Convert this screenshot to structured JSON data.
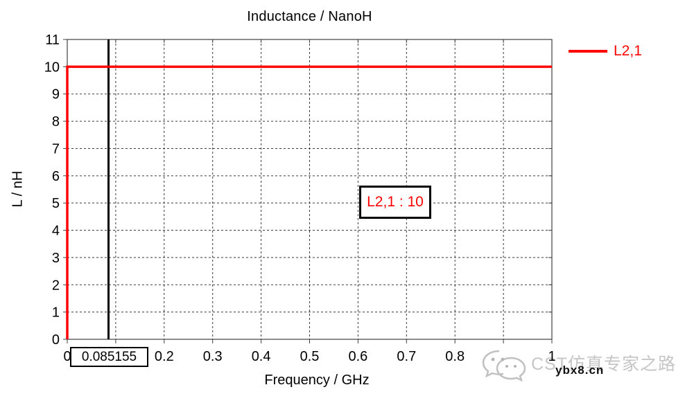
{
  "chart_data": {
    "type": "line",
    "title": "Inductance / NanoH",
    "xlabel": "Frequency / GHz",
    "ylabel": "L / nH",
    "xlim": [
      0,
      1
    ],
    "ylim": [
      0,
      11
    ],
    "x_grid_step": 0.1,
    "y_grid_step": 1,
    "grid": "dashed",
    "x_tick_labels": [
      {
        "value": 0,
        "label": "0"
      },
      {
        "value": 0.2,
        "label": "0.2"
      },
      {
        "value": 0.3,
        "label": "0.3"
      },
      {
        "value": 0.4,
        "label": "0.4"
      },
      {
        "value": 0.5,
        "label": "0.5"
      },
      {
        "value": 0.6,
        "label": "0.6"
      },
      {
        "value": 0.7,
        "label": "0.7"
      },
      {
        "value": 0.8,
        "label": "0.8"
      },
      {
        "value": 1,
        "label": "1"
      }
    ],
    "y_tick_labels": [
      {
        "value": 0,
        "label": "0"
      },
      {
        "value": 1,
        "label": "1"
      },
      {
        "value": 2,
        "label": "2"
      },
      {
        "value": 3,
        "label": "3"
      },
      {
        "value": 4,
        "label": "4"
      },
      {
        "value": 5,
        "label": "5"
      },
      {
        "value": 6,
        "label": "6"
      },
      {
        "value": 7,
        "label": "7"
      },
      {
        "value": 8,
        "label": "8"
      },
      {
        "value": 9,
        "label": "9"
      },
      {
        "value": 10,
        "label": "10"
      },
      {
        "value": 11,
        "label": "11"
      }
    ],
    "series": [
      {
        "name": "L2,1",
        "color": "#ff0000",
        "points": [
          [
            0,
            0
          ],
          [
            0,
            10
          ],
          [
            1,
            10
          ]
        ]
      }
    ],
    "marker": {
      "x": 0.085155,
      "label": "0.085155",
      "color": "#000000"
    },
    "annotation": {
      "label": "L2,1 : 10",
      "color": "#ff0000"
    },
    "legend": {
      "position": "right-top",
      "entries": [
        {
          "label": "L2,1",
          "color": "#ff0000"
        }
      ]
    }
  },
  "watermark": {
    "icon": "wechat-icon",
    "brand": "CST仿真专家之路",
    "site": "ybx8.cn"
  },
  "colors": {
    "series": "#ff0000",
    "grid": "#3a3a3a",
    "axis": "#404040",
    "text": "#000000",
    "watermark_text": "#c6c6c6",
    "background": "#ffffff"
  }
}
